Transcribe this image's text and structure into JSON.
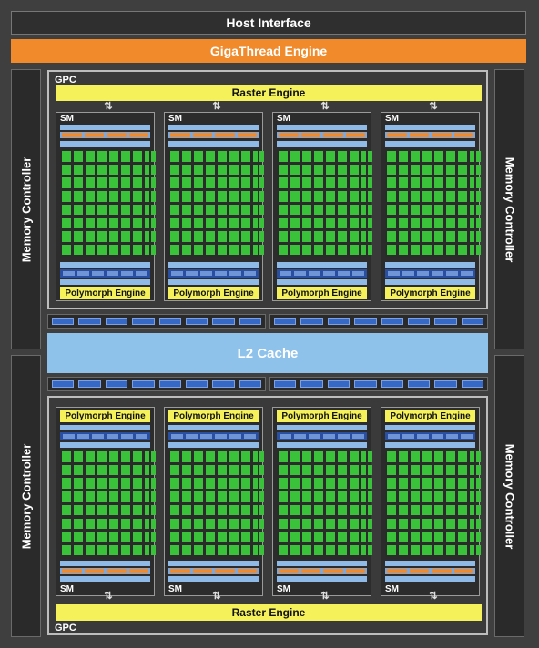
{
  "host_interface": "Host Interface",
  "gigathread_engine": "GigaThread Engine",
  "memory_controller_label": "Memory Controller",
  "l2_cache": "L2 Cache",
  "gpcs": [
    {
      "label": "GPC",
      "raster_engine": "Raster Engine",
      "sms": [
        {
          "label": "SM",
          "polymorph": "Polymorph Engine"
        },
        {
          "label": "SM",
          "polymorph": "Polymorph Engine"
        },
        {
          "label": "SM",
          "polymorph": "Polymorph Engine"
        },
        {
          "label": "SM",
          "polymorph": "Polymorph Engine"
        }
      ]
    },
    {
      "label": "GPC",
      "raster_engine": "Raster Engine",
      "sms": [
        {
          "label": "SM",
          "polymorph": "Polymorph Engine"
        },
        {
          "label": "SM",
          "polymorph": "Polymorph Engine"
        },
        {
          "label": "SM",
          "polymorph": "Polymorph Engine"
        },
        {
          "label": "SM",
          "polymorph": "Polymorph Engine"
        }
      ]
    }
  ],
  "colors": {
    "gigathread": "#f08a2a",
    "raster_polymorph": "#f4f15a",
    "cuda_core": "#3bc23b",
    "l2_cache": "#8ec2ea",
    "bus": "#3668c6"
  }
}
